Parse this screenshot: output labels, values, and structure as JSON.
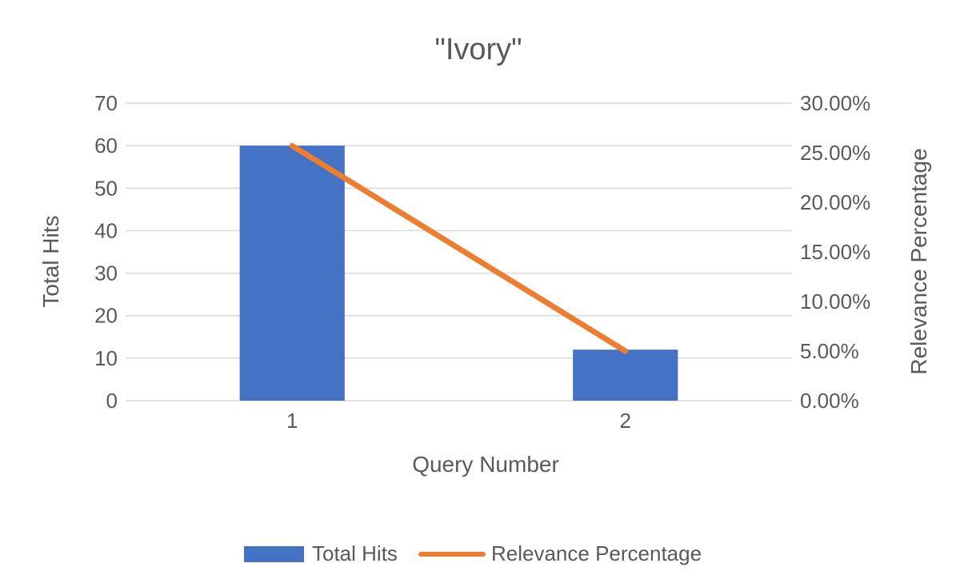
{
  "chart_data": {
    "type": "bar",
    "title": "\"Ivory\"",
    "xlabel": "Query Number",
    "ylabel": "Total Hits",
    "y2label": "Relevance Percentage",
    "categories": [
      "1",
      "2"
    ],
    "ylim": [
      0,
      70
    ],
    "y_ticks": [
      "0",
      "10",
      "20",
      "30",
      "40",
      "50",
      "60",
      "70"
    ],
    "y2lim": [
      0,
      0.3
    ],
    "y2_ticks": [
      "0.00%",
      "5.00%",
      "10.00%",
      "15.00%",
      "20.00%",
      "25.00%",
      "30.00%"
    ],
    "grid": true,
    "legend_position": "bottom",
    "series": [
      {
        "name": "Total Hits",
        "type": "bar",
        "axis": "left",
        "color": "#4472C4",
        "values": [
          60,
          12
        ]
      },
      {
        "name": "Relevance Percentage",
        "type": "line",
        "axis": "right",
        "color": "#ED7D31",
        "values": [
          0.257,
          0.05
        ]
      }
    ]
  }
}
